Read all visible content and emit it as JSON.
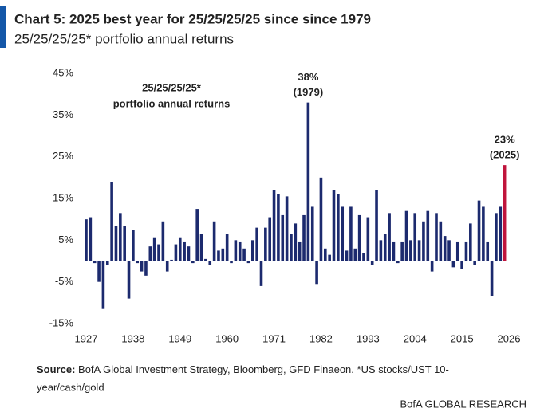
{
  "chart_data": {
    "type": "bar",
    "title": "Chart 5: 2025 best year for 25/25/25/25 since since 1979",
    "subtitle": "25/25/25/25* portfolio annual returns",
    "inset_label": [
      "25/25/25/25*",
      "portfolio annual returns"
    ],
    "x": [
      1927,
      1928,
      1929,
      1930,
      1931,
      1932,
      1933,
      1934,
      1935,
      1936,
      1937,
      1938,
      1939,
      1940,
      1941,
      1942,
      1943,
      1944,
      1945,
      1946,
      1947,
      1948,
      1949,
      1950,
      1951,
      1952,
      1953,
      1954,
      1955,
      1956,
      1957,
      1958,
      1959,
      1960,
      1961,
      1962,
      1963,
      1964,
      1965,
      1966,
      1967,
      1968,
      1969,
      1970,
      1971,
      1972,
      1973,
      1974,
      1975,
      1976,
      1977,
      1978,
      1979,
      1980,
      1981,
      1982,
      1983,
      1984,
      1985,
      1986,
      1987,
      1988,
      1989,
      1990,
      1991,
      1992,
      1993,
      1994,
      1995,
      1996,
      1997,
      1998,
      1999,
      2000,
      2001,
      2002,
      2003,
      2004,
      2005,
      2006,
      2007,
      2008,
      2009,
      2010,
      2011,
      2012,
      2013,
      2014,
      2015,
      2016,
      2017,
      2018,
      2019,
      2020,
      2021,
      2022,
      2023,
      2024,
      2025
    ],
    "values": [
      10,
      10.5,
      -0.5,
      -5,
      -11.5,
      -1,
      19,
      8.5,
      11.5,
      8.5,
      -9,
      7.5,
      -0.5,
      -2.5,
      -3.5,
      3.5,
      5.5,
      4,
      9.5,
      -2.5,
      0.3,
      4,
      5.5,
      4.5,
      3.5,
      -0.5,
      12.5,
      6.5,
      0.5,
      -1,
      9.5,
      2.5,
      3,
      6.5,
      -0.5,
      5,
      4.5,
      3,
      -0.5,
      5,
      8,
      -6,
      8,
      10.5,
      17,
      16,
      11,
      15.5,
      6.5,
      9,
      4.5,
      11,
      38,
      13,
      -5.5,
      20,
      3,
      1.5,
      17,
      16,
      13,
      2.5,
      13,
      3,
      11,
      2,
      10.5,
      -1,
      17,
      5,
      6.5,
      11.5,
      4.5,
      -0.5,
      4.5,
      12,
      5,
      11.5,
      5,
      9.5,
      12,
      -2.5,
      11.5,
      9.5,
      6,
      5,
      -1.5,
      4.5,
      -2,
      4.5,
      9,
      -1,
      14.5,
      13,
      4.5,
      -8.5,
      11.5,
      13,
      23
    ],
    "color": "#1c2a6e",
    "highlight": {
      "x": 2025,
      "color": "#c0143c"
    },
    "annotations": [
      {
        "x": 1979,
        "lines": [
          "38%",
          "(1979)"
        ]
      },
      {
        "x": 2025,
        "lines": [
          "23%",
          "(2025)"
        ]
      }
    ],
    "annotation_color": "#c0143c",
    "xlim": [
      1926.5,
      2026.5
    ],
    "xticks": [
      1927,
      1938,
      1949,
      1960,
      1971,
      1982,
      1993,
      2004,
      2015,
      2026
    ],
    "ylim": [
      -15,
      45
    ],
    "yticks": [
      {
        "value": -15,
        "label": "-15%"
      },
      {
        "value": -5,
        "label": "-5%"
      },
      {
        "value": 5,
        "label": "5%"
      },
      {
        "value": 15,
        "label": "15%"
      },
      {
        "value": 25,
        "label": "25%"
      },
      {
        "value": 35,
        "label": "35%"
      },
      {
        "value": 45,
        "label": "45%"
      }
    ],
    "source_label": "Source:",
    "source": "BofA Global Investment Strategy, Bloomberg, GFD Finaeon. *US stocks/UST 10-year/cash/gold",
    "footer": "BofA GLOBAL RESEARCH"
  }
}
